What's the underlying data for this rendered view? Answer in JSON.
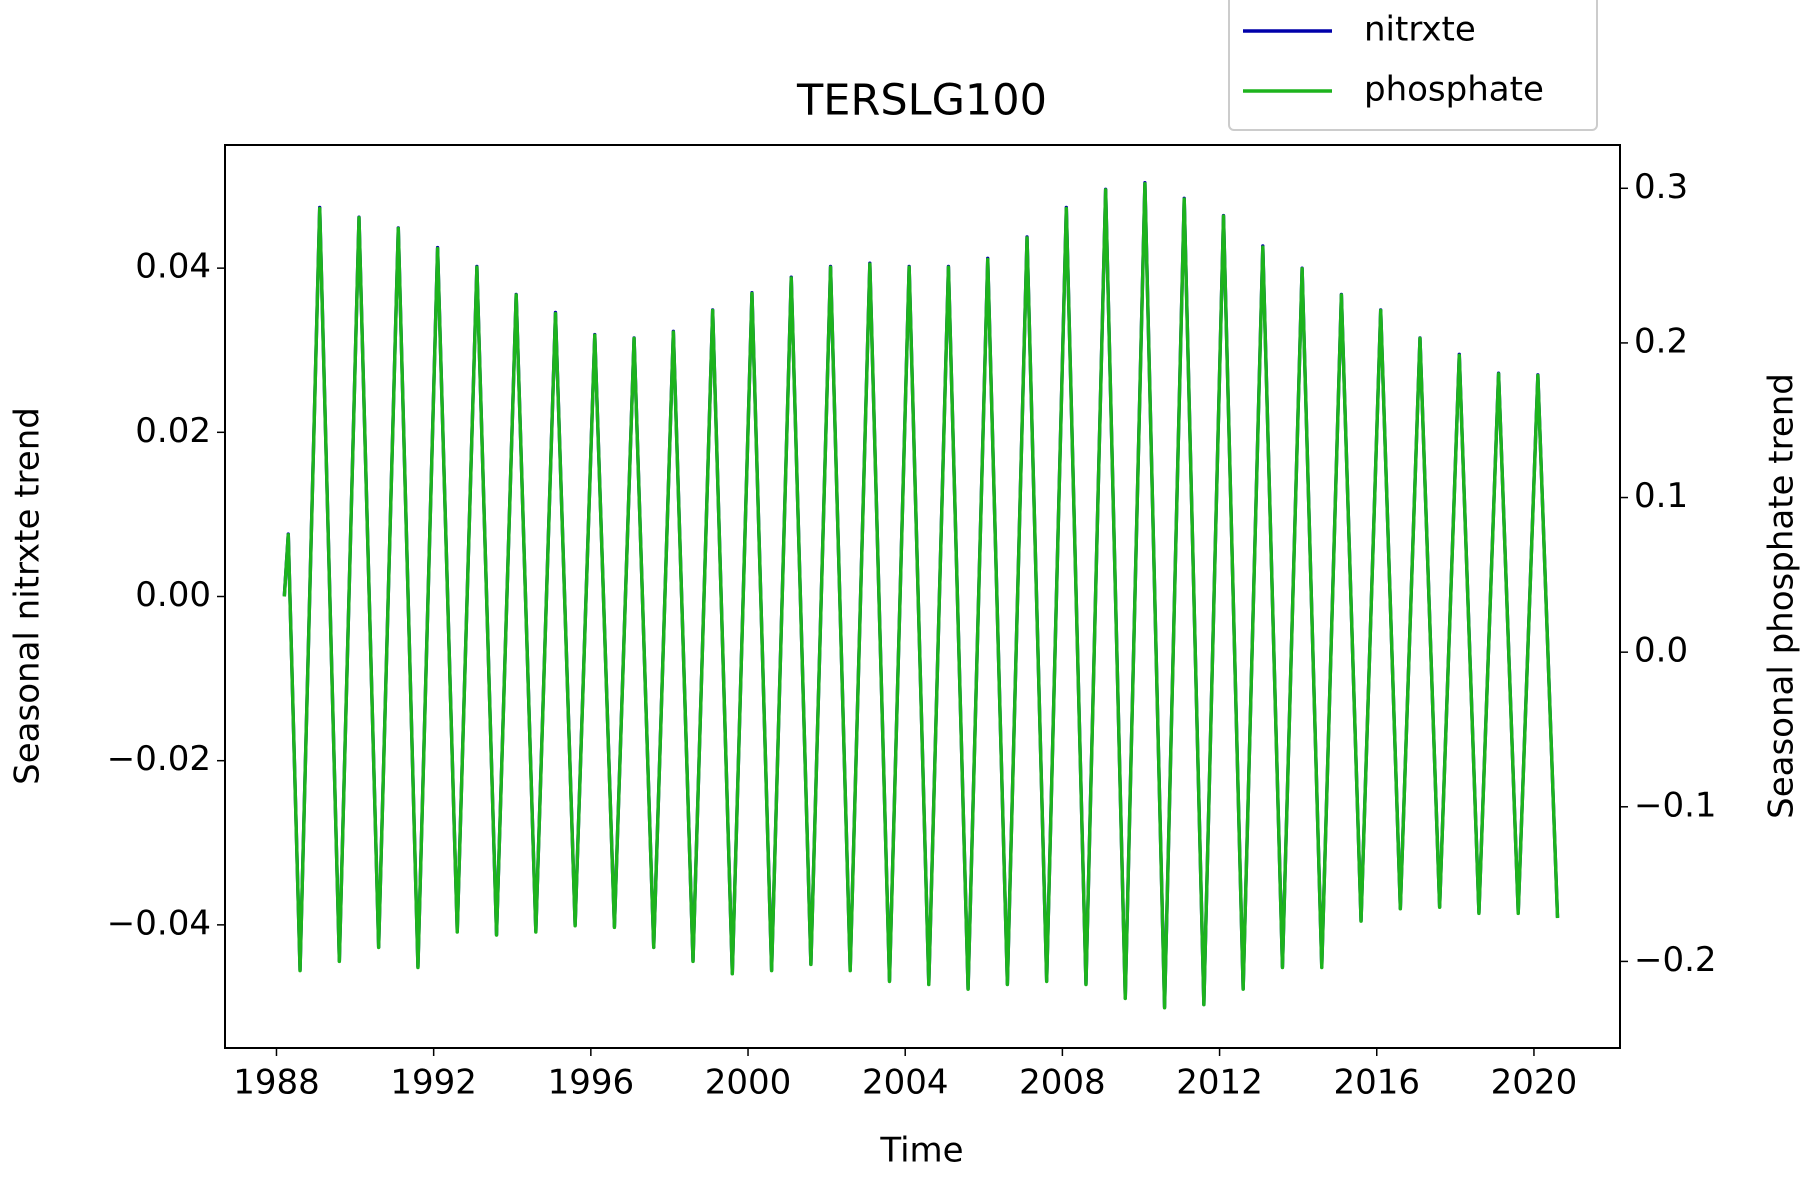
{
  "chart_data": {
    "type": "line",
    "title": "TERSLG100",
    "x_label": "Time",
    "y_label": "Seasonal nitrxte trend",
    "y2_label": "Seasonal phosphate trend",
    "legend": "upper right",
    "x": [
      1988.2,
      1988.3,
      1988.6,
      1989.1,
      1989.6,
      1990.1,
      1990.6,
      1991.1,
      1991.6,
      1992.1,
      1992.6,
      1993.1,
      1993.6,
      1994.1,
      1994.6,
      1995.1,
      1995.6,
      1996.1,
      1996.6,
      1997.1,
      1997.6,
      1998.1,
      1998.6,
      1999.1,
      1999.6,
      2000.1,
      2000.6,
      2001.1,
      2001.6,
      2002.1,
      2002.6,
      2003.1,
      2003.6,
      2004.1,
      2004.6,
      2005.1,
      2005.6,
      2006.1,
      2006.6,
      2007.1,
      2007.6,
      2008.1,
      2008.6,
      2009.1,
      2009.6,
      2010.1,
      2010.6,
      2011.1,
      2011.6,
      2012.1,
      2012.6,
      2013.1,
      2013.6,
      2014.1,
      2014.6,
      2015.1,
      2015.6,
      2016.1,
      2016.6,
      2017.1,
      2017.6,
      2018.1,
      2018.6,
      2019.1,
      2019.6,
      2020.1,
      2020.6
    ],
    "series": [
      {
        "name": "nitrxte",
        "color": "#0000aa",
        "values": [
          0.0001,
          0.0076,
          -0.0455,
          0.0474,
          -0.0444,
          0.0462,
          -0.0427,
          0.0449,
          -0.0451,
          0.0425,
          -0.0408,
          0.0402,
          -0.0412,
          0.0368,
          -0.0408,
          0.0346,
          -0.04,
          0.0319,
          -0.0402,
          0.0315,
          -0.0427,
          0.0323,
          -0.0444,
          0.0349,
          -0.0459,
          0.037,
          -0.0455,
          0.0389,
          -0.0448,
          0.0402,
          -0.0455,
          0.0406,
          -0.0468,
          0.0402,
          -0.0472,
          0.0402,
          -0.0478,
          0.0412,
          -0.0472,
          0.0438,
          -0.0468,
          0.0474,
          -0.0472,
          0.0496,
          -0.0489,
          0.0504,
          -0.05,
          0.0485,
          -0.0497,
          0.0464,
          -0.0478,
          0.0427,
          -0.0451,
          0.04,
          -0.0451,
          0.0368,
          -0.0395,
          0.0349,
          -0.038,
          0.0315,
          -0.0378,
          0.0295,
          -0.0385,
          0.0272,
          -0.0385,
          0.027,
          -0.0391
        ]
      },
      {
        "name": "phosphate",
        "color": "#1db31d",
        "axis": "y2",
        "values": [
          0.036,
          0.076,
          -0.206,
          0.287,
          -0.2,
          0.281,
          -0.191,
          0.274,
          -0.204,
          0.261,
          -0.181,
          0.249,
          -0.183,
          0.231,
          -0.181,
          0.219,
          -0.177,
          0.205,
          -0.178,
          0.203,
          -0.191,
          0.207,
          -0.2,
          0.221,
          -0.208,
          0.232,
          -0.206,
          0.242,
          -0.202,
          0.249,
          -0.206,
          0.251,
          -0.213,
          0.249,
          -0.215,
          0.249,
          -0.218,
          0.254,
          -0.215,
          0.268,
          -0.213,
          0.287,
          -0.215,
          0.299,
          -0.224,
          0.303,
          -0.23,
          0.293,
          -0.228,
          0.282,
          -0.218,
          0.262,
          -0.204,
          0.248,
          -0.204,
          0.231,
          -0.174,
          0.221,
          -0.166,
          0.203,
          -0.165,
          0.192,
          -0.169,
          0.18,
          -0.169,
          0.179,
          -0.172
        ]
      }
    ],
    "xlim": [
      1986.69,
      2022.19
    ],
    "xticks": [
      1988,
      1992,
      1996,
      2000,
      2004,
      2008,
      2012,
      2016,
      2020
    ],
    "ylim": [
      -0.055,
      0.055
    ],
    "yticks": [
      {
        "value": -0.04,
        "label": "−0.04"
      },
      {
        "value": -0.02,
        "label": "−0.02"
      },
      {
        "value": 0,
        "label": "0.00"
      },
      {
        "value": 0.02,
        "label": "0.02"
      },
      {
        "value": 0.04,
        "label": "0.04"
      }
    ],
    "y2lim": [
      -0.256,
      0.328
    ],
    "y2ticks": [
      {
        "value": -0.2,
        "label": "−0.2"
      },
      {
        "value": -0.1,
        "label": "−0.1"
      },
      {
        "value": 0,
        "label": "0.0"
      },
      {
        "value": 0.1,
        "label": "0.1"
      },
      {
        "value": 0.2,
        "label": "0.2"
      },
      {
        "value": 0.3,
        "label": "0.3"
      }
    ],
    "grid": false
  }
}
